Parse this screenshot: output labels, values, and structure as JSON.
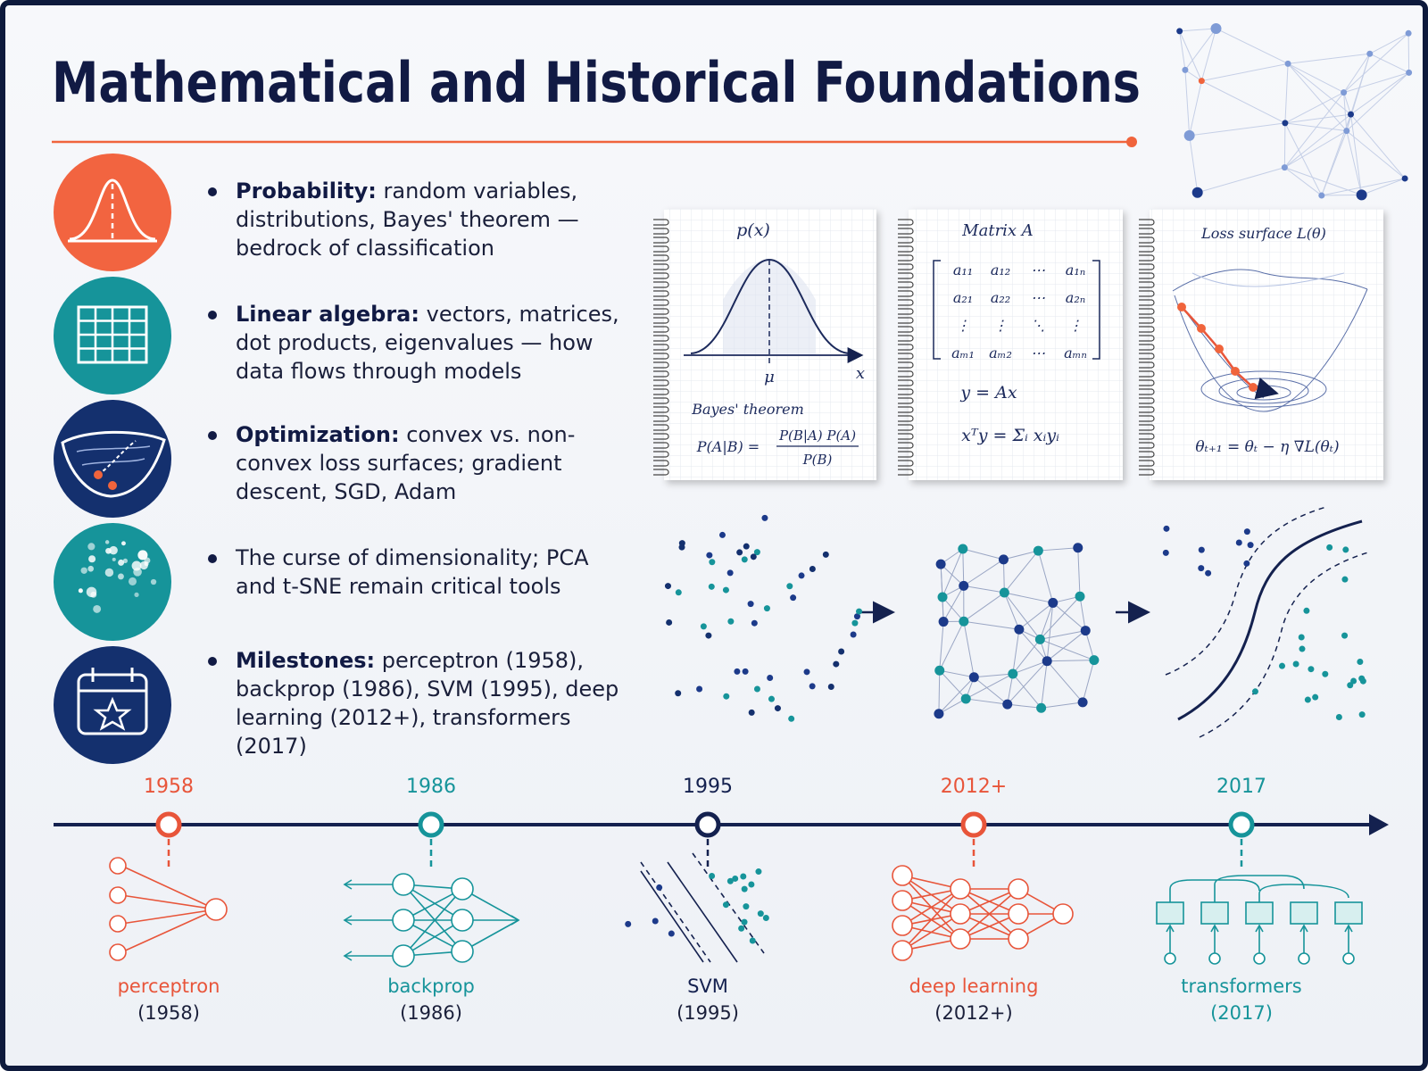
{
  "title": "Mathematical and Historical Foundations",
  "bullets": [
    {
      "label": "Probability:",
      "text": "random variables, distributions, Bayes' theorem — bedrock of classification"
    },
    {
      "label": "Linear algebra:",
      "text": "vectors, matrices, dot products, eigenvalues — how data flows through models"
    },
    {
      "label": "Optimization:",
      "text": "convex vs. non-convex loss surfaces; gradient descent, SGD, Adam"
    },
    {
      "text": "The curse of dimensionality; PCA and t-SNE remain critical tools"
    },
    {
      "label": "Milestones:",
      "text": "perceptron (1958), backprop (1986), SVM (1995), deep learning (2012+), transformers (2017)"
    }
  ],
  "notebooks": {
    "probability": {
      "heading": "p(x)",
      "mean": "μ",
      "axis": "x",
      "caption": "Bayes' theorem",
      "lhs": "P(A|B) =",
      "numerator": "P(B|A) P(A)",
      "denominator": "P(B)"
    },
    "matrix": {
      "heading": "Matrix  A",
      "rows": [
        [
          "a₁₁",
          "a₁₂",
          "⋯",
          "a₁ₙ"
        ],
        [
          "a₂₁",
          "a₂₂",
          "⋯",
          "a₂ₙ"
        ],
        [
          "⋮",
          "⋮",
          "⋱",
          "⋮"
        ],
        [
          "aₘ₁",
          "aₘ₂",
          "⋯",
          "aₘₙ"
        ]
      ],
      "equation": "y = Ax",
      "dot_product": "xᵀy = Σᵢ xᵢyᵢ"
    },
    "loss": {
      "heading": "Loss surface  L(θ)",
      "update": "θₜ₊₁ = θₜ − η ∇L(θₜ)"
    }
  },
  "timeline": [
    {
      "year": "1958",
      "name": "perceptron",
      "year_label": "(1958)"
    },
    {
      "year": "1986",
      "name": "backprop",
      "year_label": "(1986)"
    },
    {
      "year": "1995",
      "name": "SVM",
      "year_label": "(1995)"
    },
    {
      "year": "2012+",
      "name": "deep learning",
      "year_label": "(2012+)"
    },
    {
      "year": "2017",
      "name": "transformers",
      "year_label": "(2017)"
    }
  ]
}
